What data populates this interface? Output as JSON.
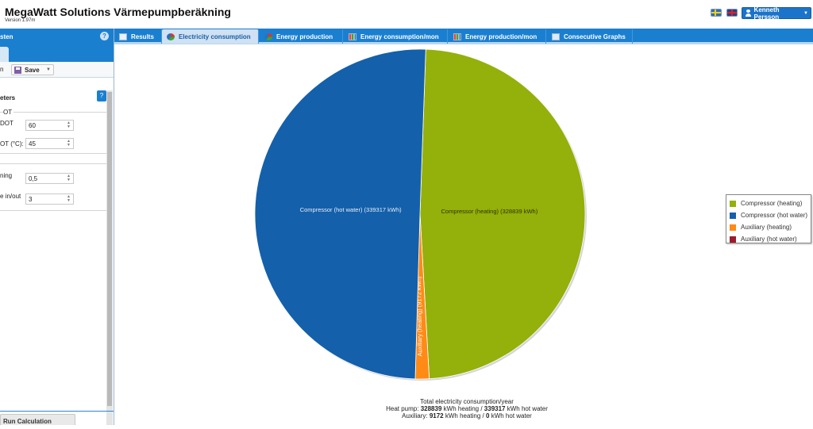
{
  "header": {
    "title": "MegaWatt Solutions Värmepumpberäkning",
    "version": "Version 1.97m",
    "user": "Kenneth Persson"
  },
  "sidebar": {
    "head_title": "sten",
    "toolbar": {
      "prev_label": "n",
      "save_label": "Save"
    },
    "section_title": "eters",
    "params": [
      {
        "label": "OT",
        "value": ""
      },
      {
        "label": "DOT",
        "value": "60"
      },
      {
        "label": "OT (°C):",
        "value": "45"
      },
      {
        "label": "ning",
        "value": "0,5"
      },
      {
        "label": "e in/out",
        "value": "3"
      }
    ],
    "run_label": "Run Calculation"
  },
  "tabs": [
    {
      "label": "Results",
      "icon": "table-icon",
      "active": false
    },
    {
      "label": "Electricity consumption",
      "icon": "pie-chart-icon",
      "active": true
    },
    {
      "label": "Energy production",
      "icon": "pie-chart-icon",
      "active": false
    },
    {
      "label": "Energy consumption/mon",
      "icon": "bar-chart-icon",
      "active": false
    },
    {
      "label": "Energy production/mon",
      "icon": "bar-chart-icon",
      "active": false
    },
    {
      "label": "Consecutive Graphs",
      "icon": "line-graph-icon",
      "active": false
    }
  ],
  "chart_data": {
    "type": "pie",
    "slices": [
      {
        "name": "Compressor (heating)",
        "value": 328839,
        "label": "Compressor (heating) (328839 kWh)",
        "color": "#94b00a"
      },
      {
        "name": "Compressor (hot water)",
        "value": 339317,
        "label": "Compressor (hot water) (339317 kWh)",
        "color": "#1460ab"
      },
      {
        "name": "Auxiliary (heating)",
        "value": 9172,
        "label": "Auxiliary (heating) (9172 kWh)",
        "color": "#ff8a16"
      },
      {
        "name": "Auxiliary (hot water)",
        "value": 0,
        "label": "Auxiliary (hot water) (0 kWh)",
        "color": "#9b1c2a"
      }
    ],
    "legend_position": "right",
    "summary": {
      "title": "Total electricity consumption/year",
      "heatpump_prefix": "Heat pump:",
      "heatpump_heating": "328839",
      "heatpump_hot_water": "339317",
      "aux_prefix": "Auxiliary:",
      "aux_heating": "9172",
      "aux_hot_water": "0",
      "kwh_heating": "kWh heating /",
      "kwh_hot_water": "kWh hot water"
    }
  }
}
